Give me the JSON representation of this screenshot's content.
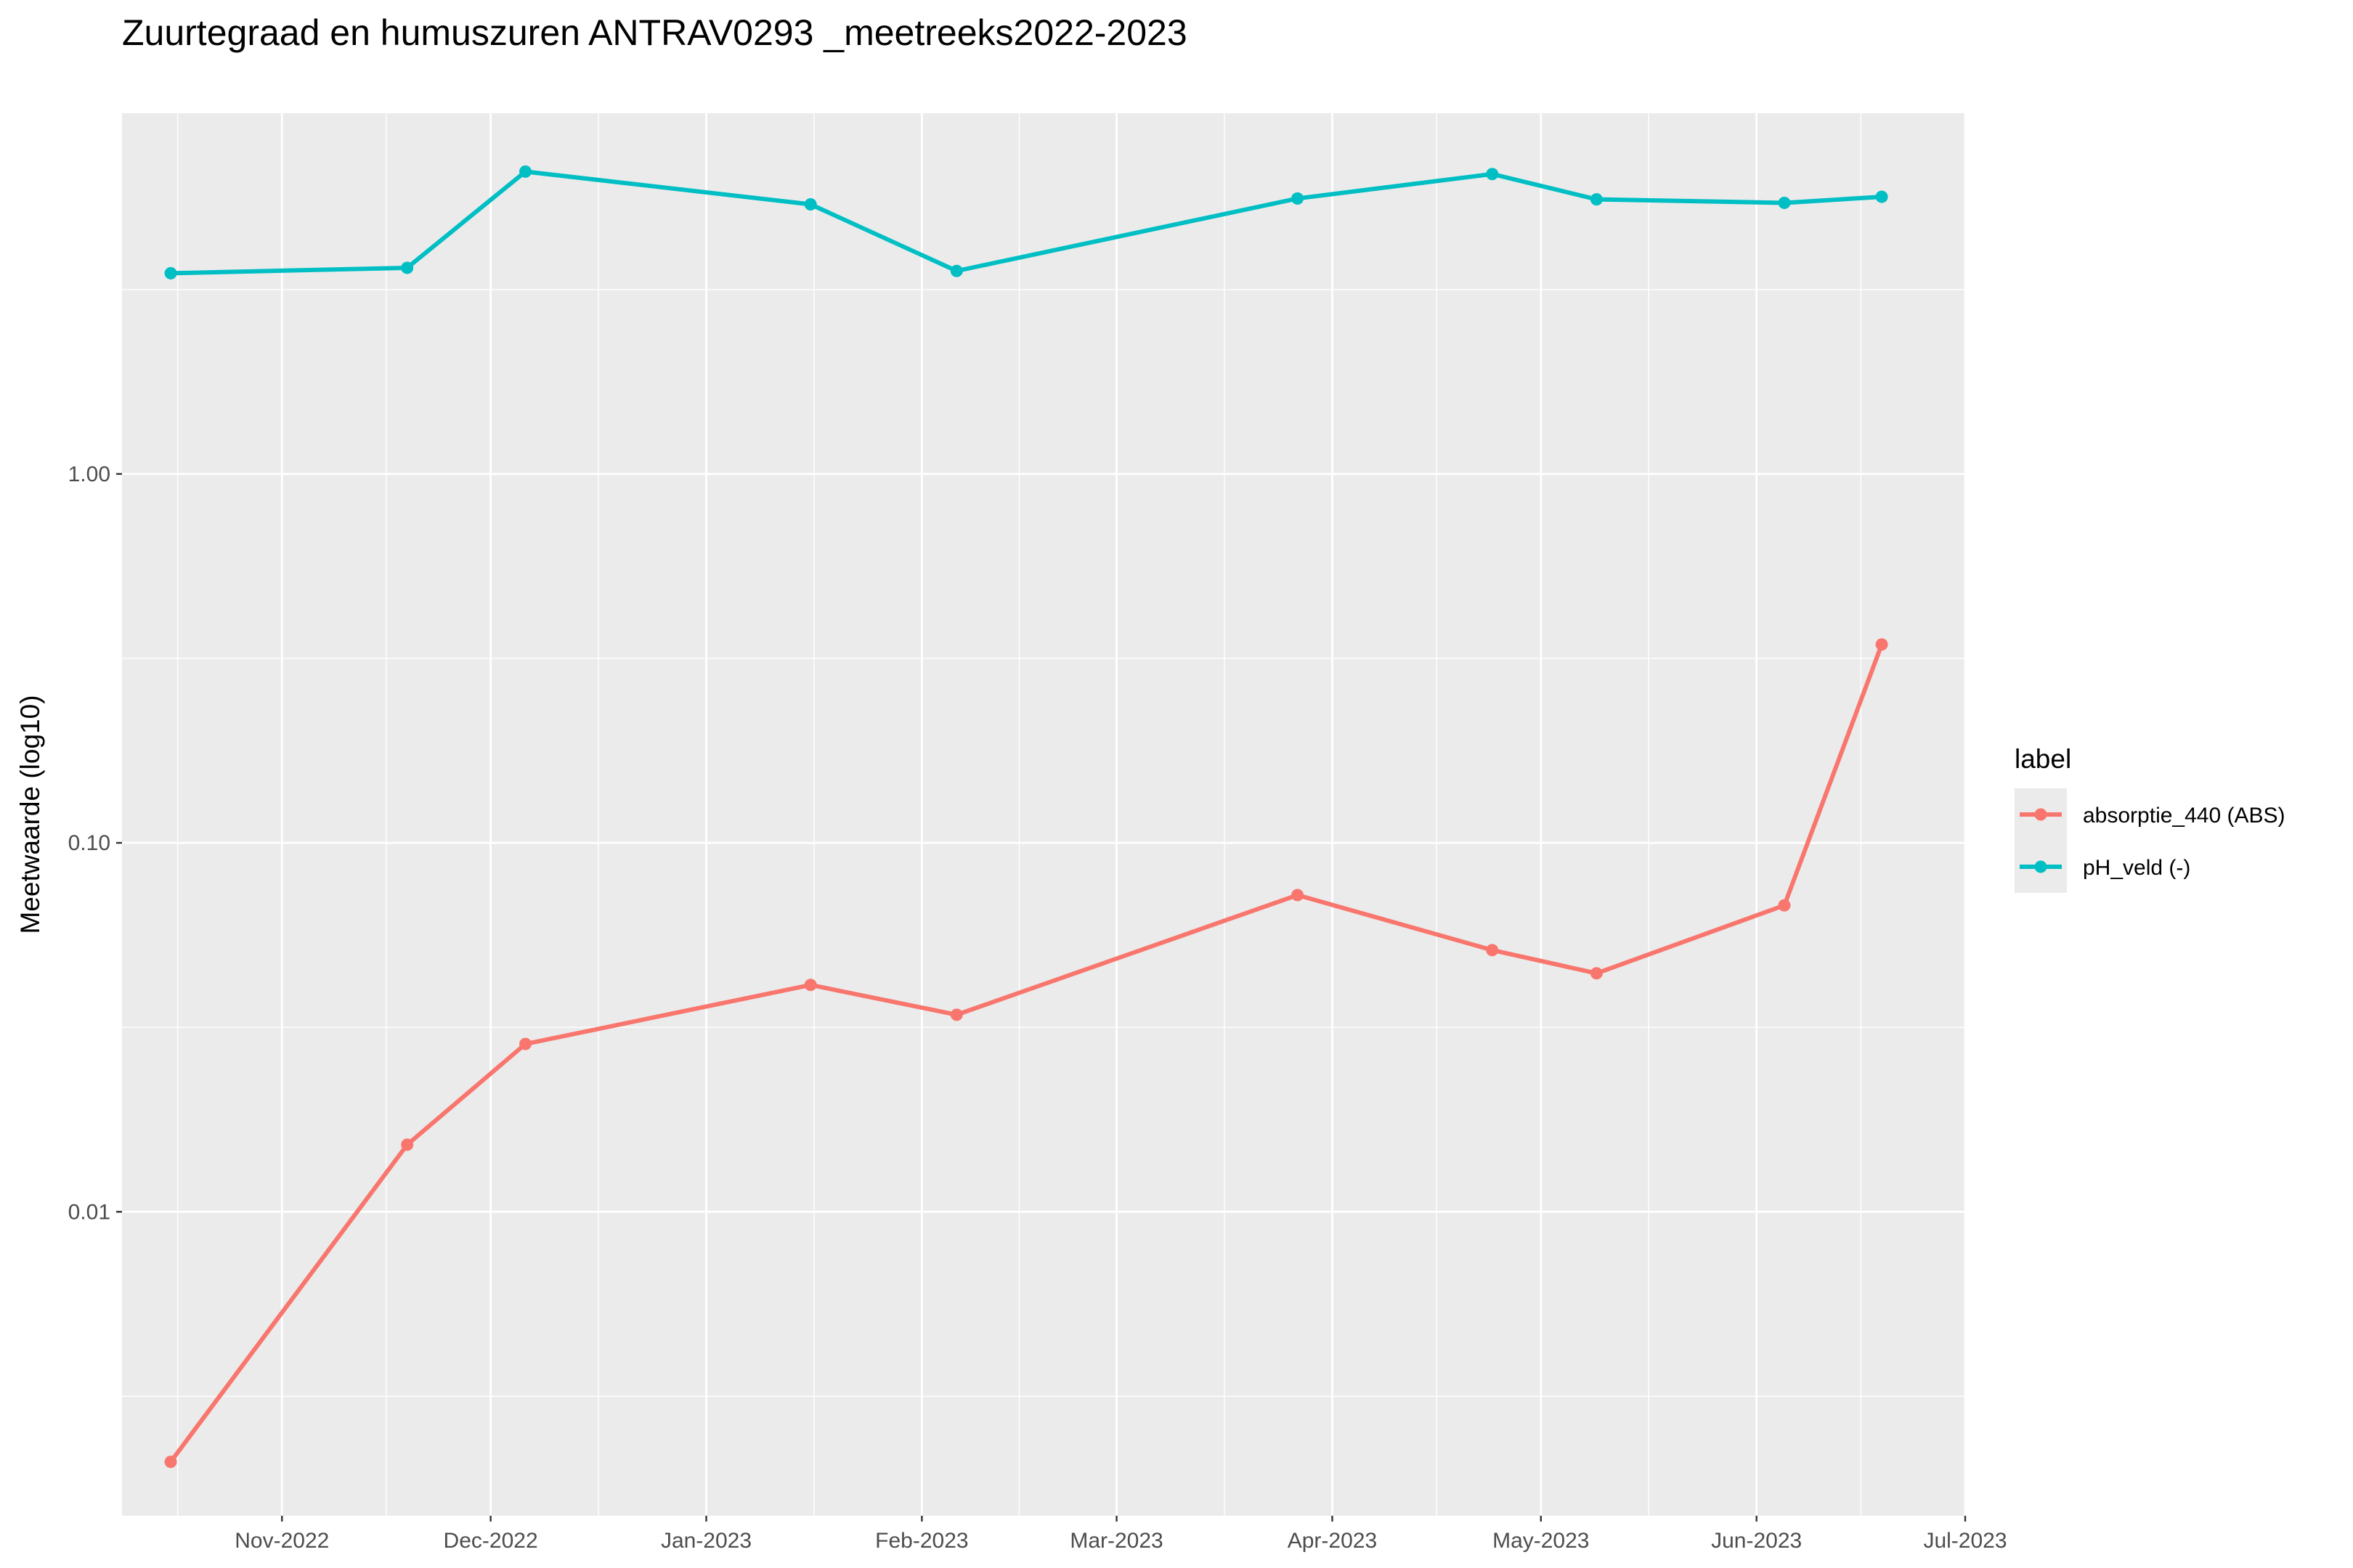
{
  "chart_data": {
    "type": "line",
    "title": "Zuurtegraad en humuszuren ANTRAV0293 _meetreeks2022-2023",
    "xlabel": "",
    "ylabel": "Meetwaarde (log10)",
    "y_scale": "log10",
    "ylim": [
      0.0015,
      9.5
    ],
    "y_ticks": [
      0.01,
      0.1,
      1.0
    ],
    "y_tick_labels": [
      "0.01",
      "0.10",
      "1.00"
    ],
    "xlim": [
      "2022-10-09",
      "2023-07-01"
    ],
    "x_ticks": [
      "2022-11-01",
      "2022-12-01",
      "2023-01-01",
      "2023-02-01",
      "2023-03-01",
      "2023-04-01",
      "2023-05-01",
      "2023-06-01",
      "2023-07-01"
    ],
    "x_tick_labels": [
      "Nov-2022",
      "Dec-2022",
      "Jan-2023",
      "Feb-2023",
      "Mar-2023",
      "Apr-2023",
      "May-2023",
      "Jun-2023",
      "Jul-2023"
    ],
    "grid": true,
    "legend_position": "right",
    "legend_title": "label",
    "series": [
      {
        "name": "absorptie_440 (ABS)",
        "color": "#F8766D",
        "x": [
          "2022-10-16",
          "2022-11-19",
          "2022-12-06",
          "2023-01-16",
          "2023-02-06",
          "2023-03-27",
          "2023-04-24",
          "2023-05-09",
          "2023-06-05",
          "2023-06-19"
        ],
        "y": [
          0.0021,
          0.0152,
          0.0285,
          0.0412,
          0.0342,
          0.0722,
          0.0512,
          0.0443,
          0.0677,
          0.345
        ]
      },
      {
        "name": "pH_veld (-)",
        "color": "#00BFC4",
        "x": [
          "2022-10-16",
          "2022-11-19",
          "2022-12-06",
          "2023-01-16",
          "2023-02-06",
          "2023-03-27",
          "2023-04-24",
          "2023-05-09",
          "2023-06-05",
          "2023-06-19"
        ],
        "y": [
          3.5,
          3.62,
          6.6,
          5.38,
          3.55,
          5.58,
          6.5,
          5.55,
          5.43,
          5.64
        ]
      }
    ]
  }
}
